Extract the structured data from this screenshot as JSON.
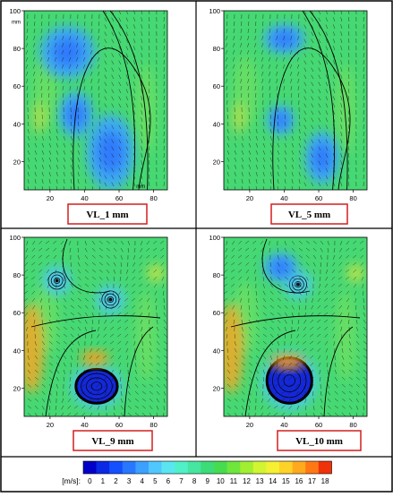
{
  "figure": {
    "panels": [
      {
        "label": "VL_1 mm",
        "axis": {
          "x_ticks": [
            "20",
            "40",
            "60",
            "80"
          ],
          "y_ticks": [
            "20",
            "40",
            "60",
            "80",
            "100"
          ],
          "x_unit": "mm",
          "y_unit": "mm"
        },
        "flow_features": [
          {
            "kind": "low-speed-zone",
            "cx": 30,
            "cy": 78,
            "rx": 16,
            "ry": 14
          },
          {
            "kind": "low-speed-zone",
            "cx": 55,
            "cy": 25,
            "rx": 14,
            "ry": 20
          },
          {
            "kind": "low-speed-zone",
            "cx": 35,
            "cy": 45,
            "rx": 10,
            "ry": 12
          }
        ]
      },
      {
        "label": "VL_5 mm",
        "axis": {
          "x_ticks": [
            "20",
            "40",
            "60",
            "80"
          ],
          "y_ticks": [
            "20",
            "40",
            "60",
            "80",
            "100"
          ]
        },
        "flow_features": [
          {
            "kind": "low-speed-zone",
            "cx": 40,
            "cy": 85,
            "rx": 12,
            "ry": 8
          },
          {
            "kind": "low-speed-zone",
            "cx": 62,
            "cy": 22,
            "rx": 10,
            "ry": 14
          },
          {
            "kind": "low-speed-zone",
            "cx": 38,
            "cy": 42,
            "rx": 8,
            "ry": 8
          }
        ]
      },
      {
        "label": "VL_9 mm",
        "axis": {
          "x_ticks": [
            "20",
            "40",
            "60",
            "80"
          ],
          "y_ticks": [
            "20",
            "40",
            "60",
            "80",
            "100"
          ]
        },
        "flow_features": [
          {
            "kind": "vortex",
            "cx": 24,
            "cy": 77,
            "r": 6
          },
          {
            "kind": "vortex",
            "cx": 55,
            "cy": 67,
            "r": 7
          },
          {
            "kind": "core",
            "cx": 47,
            "cy": 21,
            "rx": 12,
            "ry": 9
          },
          {
            "kind": "high-speed-zone",
            "cx": 46,
            "cy": 36,
            "rx": 8,
            "ry": 4
          }
        ]
      },
      {
        "label": "VL_10 mm",
        "axis": {
          "x_ticks": [
            "20",
            "40",
            "60",
            "80"
          ],
          "y_ticks": [
            "20",
            "40",
            "60",
            "80",
            "100"
          ]
        },
        "flow_features": [
          {
            "kind": "vortex",
            "cx": 48,
            "cy": 75,
            "r": 6
          },
          {
            "kind": "low-speed-zone",
            "cx": 38,
            "cy": 84,
            "rx": 10,
            "ry": 8
          },
          {
            "kind": "core",
            "cx": 43,
            "cy": 24,
            "rx": 13,
            "ry": 12
          },
          {
            "kind": "high-speed-zone",
            "cx": 42,
            "cy": 34,
            "rx": 10,
            "ry": 4
          }
        ]
      }
    ],
    "colorbar": {
      "unit": "[m/s]:",
      "ticks": [
        "0",
        "1",
        "2",
        "3",
        "4",
        "5",
        "6",
        "7",
        "8",
        "9",
        "10",
        "11",
        "12",
        "13",
        "14",
        "15",
        "16",
        "17",
        "18"
      ],
      "colors": [
        "#0000c8",
        "#0a28e6",
        "#1450ff",
        "#2878ff",
        "#3ca0ff",
        "#50c8ff",
        "#5ae6f0",
        "#50f0c8",
        "#46e6a0",
        "#3cdc78",
        "#46dc50",
        "#6ee63c",
        "#a0ef32",
        "#d2f532",
        "#f5f032",
        "#ffd228",
        "#ffaa1e",
        "#ff7814",
        "#f0320a"
      ]
    },
    "label_box_color": "#d21e1e"
  }
}
